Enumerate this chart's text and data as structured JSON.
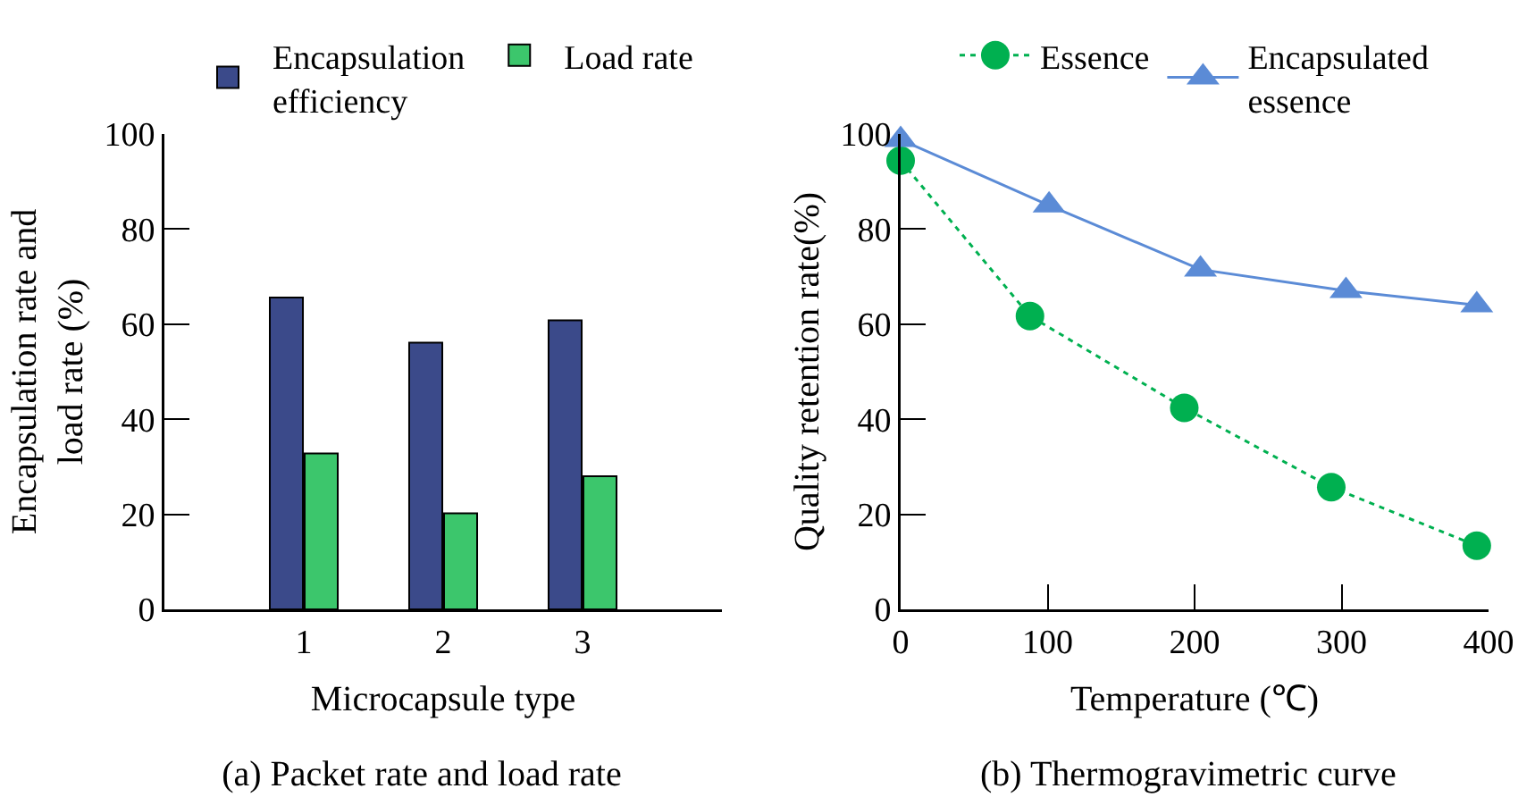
{
  "chart_data": [
    {
      "type": "bar",
      "title": "(a) Packet rate and load rate",
      "xlabel": "Microcapsule type",
      "ylabel": "Encapsulation rate and load rate (%)",
      "categories": [
        null,
        "1",
        "2",
        "3",
        null
      ],
      "series": [
        {
          "name": "Encapsulation efficiency",
          "color": "#3b4a8a",
          "values": [
            null,
            65.6,
            56.1,
            60.8,
            null
          ]
        },
        {
          "name": "Load rate",
          "color": "#3cc66c",
          "values": [
            null,
            32.8,
            20.2,
            28.0,
            null
          ]
        }
      ],
      "ylim": [
        0,
        100
      ],
      "yticks": [
        0,
        20,
        40,
        60,
        80,
        100
      ],
      "grid": false,
      "legend": "top"
    },
    {
      "type": "line",
      "title": "(b) Thermogravimetric curve",
      "xlabel": "Temperature (℃)",
      "ylabel": "Quality retention rate(%)",
      "series": [
        {
          "name": "Essence",
          "color": "#00b050",
          "marker": "circle",
          "line_style": "dotted",
          "x": [
            0,
            88,
            193,
            293,
            392
          ],
          "values": [
            94.4,
            61.7,
            42.4,
            25.7,
            13.4
          ]
        },
        {
          "name": "Encapsulated essence",
          "color": "#5b8bd6",
          "marker": "triangle",
          "line_style": "solid",
          "x": [
            0,
            101,
            204,
            303,
            392
          ],
          "values": [
            98.8,
            85.0,
            71.5,
            67.0,
            64.0
          ]
        }
      ],
      "xlim": [
        0,
        400
      ],
      "xticks": [
        0,
        100,
        200,
        300,
        400
      ],
      "ylim": [
        0,
        100
      ],
      "yticks": [
        0,
        20,
        40,
        60,
        80,
        100
      ],
      "grid": false,
      "legend": "top"
    }
  ]
}
